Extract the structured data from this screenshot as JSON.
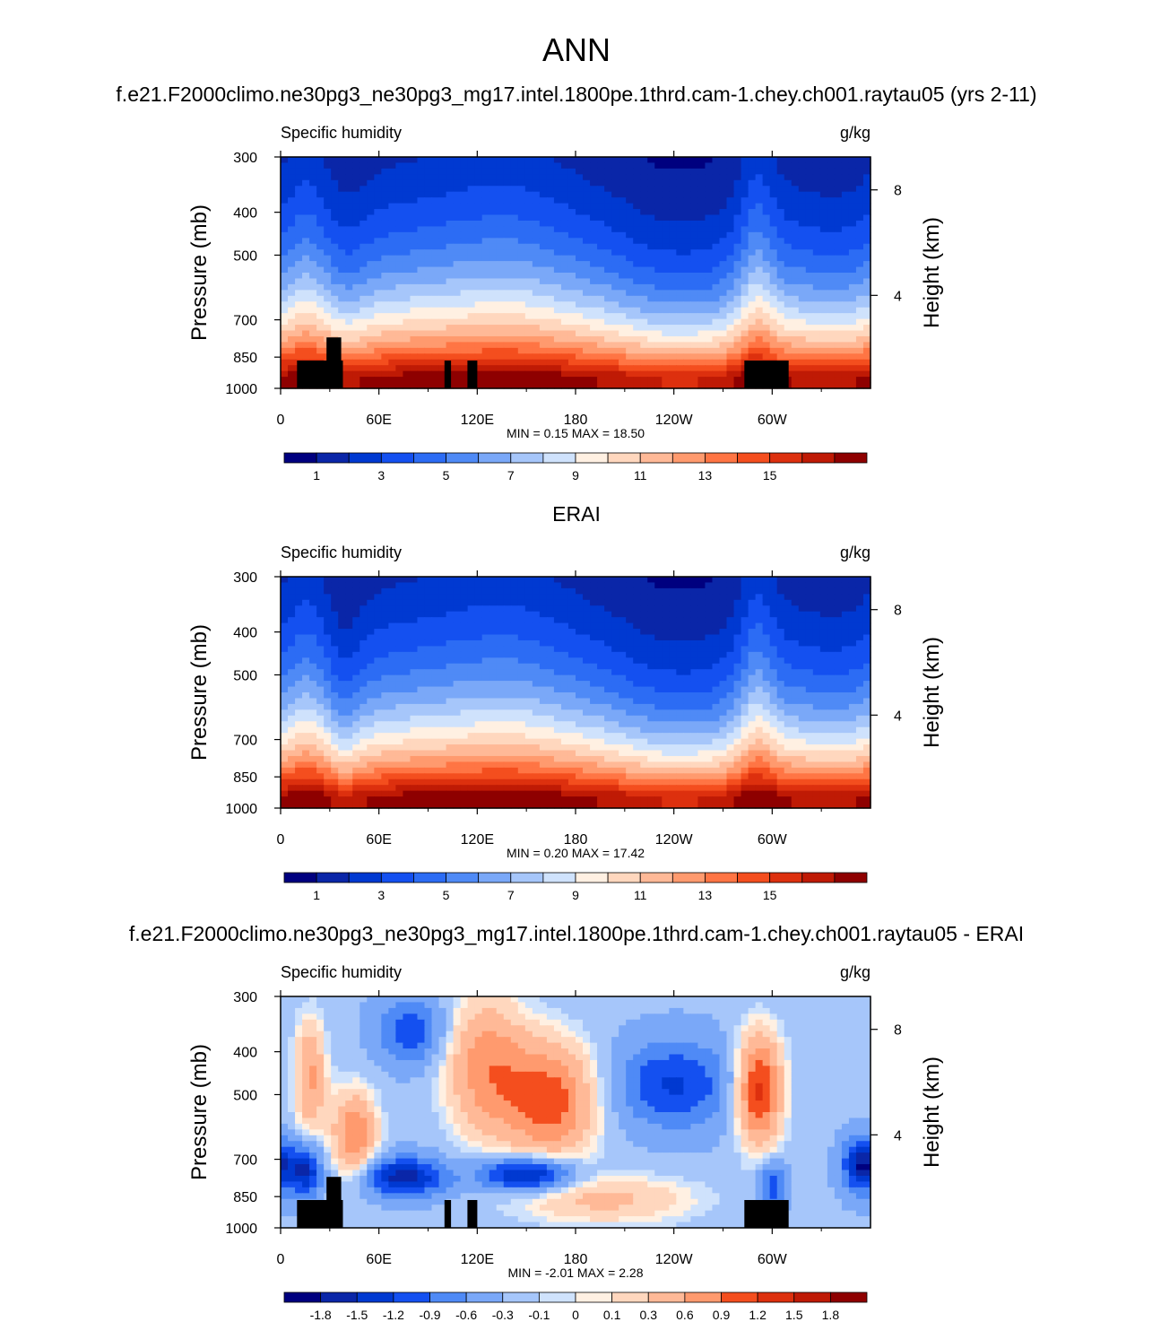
{
  "figure": {
    "main_title": "ANN",
    "colormap": [
      "#00007f",
      "#0a26a8",
      "#0039d1",
      "#1450f0",
      "#2c6cf4",
      "#4f8af6",
      "#7aa8f8",
      "#a6c6fa",
      "#cfe2fc",
      "#fff0e2",
      "#ffd7be",
      "#ffb997",
      "#ff9a6e",
      "#ff7544",
      "#f44e1e",
      "#dd300e",
      "#bf1a05",
      "#8e0000"
    ]
  },
  "chart_data": [
    {
      "type": "heatmap",
      "case_title": "f.e21.F2000climo.ne30pg3_ne30pg3_mg17.intel.1800pe.1thrd.cam-1.chey.ch001.raytau05 (yrs 2-11)",
      "left_string": "Specific humidity",
      "right_string": "g/kg",
      "ylabel": "Pressure (mb)",
      "ylabel_right": "Height (km)",
      "x_ticks": [
        "0",
        "60E",
        "120E",
        "180",
        "120W",
        "60W"
      ],
      "y_ticks": [
        "300",
        "400",
        "500",
        "700",
        "850",
        "1000"
      ],
      "y_right_ticks": [
        "8",
        "4"
      ],
      "stats": "MIN =   0.15  MAX =  18.50",
      "levels": [
        1,
        2,
        3,
        4,
        5,
        6,
        7,
        8,
        9,
        10,
        11,
        12,
        13,
        14,
        15,
        16,
        17
      ],
      "colorbar_labels": [
        "1",
        "3",
        "5",
        "7",
        "9",
        "11",
        "13",
        "15"
      ],
      "field": "model"
    },
    {
      "type": "heatmap",
      "case_title": "ERAI",
      "left_string": "Specific humidity",
      "right_string": "g/kg",
      "ylabel": "Pressure (mb)",
      "ylabel_right": "Height (km)",
      "x_ticks": [
        "0",
        "60E",
        "120E",
        "180",
        "120W",
        "60W"
      ],
      "y_ticks": [
        "300",
        "400",
        "500",
        "700",
        "850",
        "1000"
      ],
      "y_right_ticks": [
        "8",
        "4"
      ],
      "stats": "MIN =   0.20  MAX =  17.42",
      "levels": [
        1,
        2,
        3,
        4,
        5,
        6,
        7,
        8,
        9,
        10,
        11,
        12,
        13,
        14,
        15,
        16,
        17
      ],
      "colorbar_labels": [
        "1",
        "3",
        "5",
        "7",
        "9",
        "11",
        "13",
        "15"
      ],
      "field": "obs"
    },
    {
      "type": "heatmap",
      "case_title": "f.e21.F2000climo.ne30pg3_ne30pg3_mg17.intel.1800pe.1thrd.cam-1.chey.ch001.raytau05 - ERAI",
      "left_string": "Specific humidity",
      "right_string": "g/kg",
      "ylabel": "Pressure (mb)",
      "ylabel_right": "Height (km)",
      "x_ticks": [
        "0",
        "60E",
        "120E",
        "180",
        "120W",
        "60W"
      ],
      "y_ticks": [
        "300",
        "400",
        "500",
        "700",
        "850",
        "1000"
      ],
      "y_right_ticks": [
        "8",
        "4"
      ],
      "stats": "MIN =  -2.01  MAX =   2.28",
      "levels": [
        -1.8,
        -1.5,
        -1.2,
        -0.9,
        -0.6,
        -0.3,
        -0.1,
        0,
        0.1,
        0.3,
        0.6,
        0.9,
        1.2,
        1.5,
        1.8
      ],
      "colorbar_labels": [
        "-1.8",
        "-1.5",
        "-1.2",
        "-0.9",
        "-0.6",
        "-0.3",
        "-0.1",
        "0",
        "0.1",
        "0.3",
        "0.6",
        "0.9",
        "1.2",
        "1.5",
        "1.8"
      ],
      "field": "diff"
    }
  ]
}
